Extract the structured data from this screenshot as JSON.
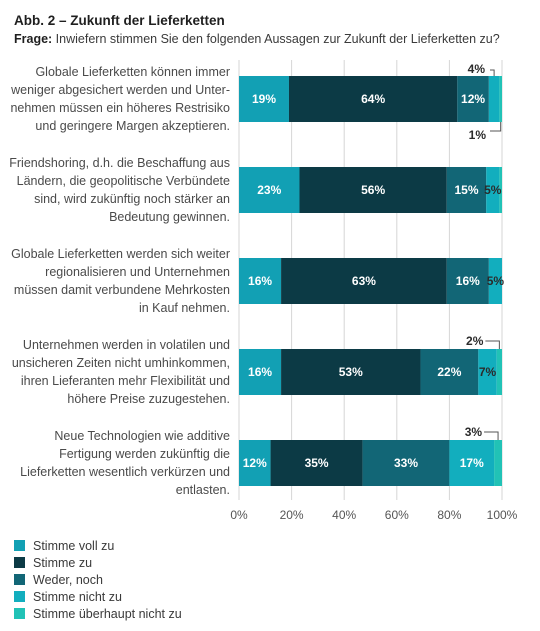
{
  "header": {
    "title": "Abb. 2 – Zukunft der Lieferketten",
    "question_prefix": "Frage:",
    "question_text": " Inwiefern stimmen Sie den folgenden Aussagen zur Zukunft der Lieferketten zu?"
  },
  "colors": {
    "Stimme voll zu": "#12a0b4",
    "Stimme zu": "#0c3a45",
    "Weder, noch": "#126676",
    "Stimme nicht zu": "#12aebe",
    "Stimme überhaupt nicht zu": "#21c2b6"
  },
  "chart_data": {
    "type": "bar",
    "orientation": "horizontal",
    "stacked": true,
    "title": "Abb. 2 – Zukunft der Lieferketten",
    "subtitle": "Frage: Inwiefern stimmen Sie den folgenden Aussagen zur Zukunft der Lieferketten zu?",
    "categories": [
      [
        "Globale Lieferketten können immer",
        "weniger abgesichert werden und Unter-",
        "nehmen müssen ein höheres Restrisiko",
        "und geringere Margen akzeptieren."
      ],
      [
        "Friendshoring, d.h. die Beschaffung aus",
        "Ländern, die geopolitische Verbündete",
        "sind, wird zukünftig noch stärker an",
        "Bedeutung gewinnen."
      ],
      [
        "Globale Lieferketten werden sich weiter",
        "regionalisieren und Unternehmen",
        "müssen damit verbundene Mehrkosten",
        "in Kauf nehmen."
      ],
      [
        "Unternehmen werden in volatilen und",
        "unsicheren Zeiten nicht umhinkommen,",
        "ihren Lieferanten mehr Flexibilität und",
        "höhere Preise zuzugestehen."
      ],
      [
        "Neue Technologien wie additive",
        "Fertigung werden zukünftig die",
        "Lieferketten wesentlich verkürzen und",
        "entlasten."
      ]
    ],
    "series": [
      {
        "name": "Stimme voll zu",
        "values": [
          19,
          23,
          16,
          16,
          12
        ],
        "labels": [
          "19%",
          "23%",
          "16%",
          "16%",
          "12%"
        ]
      },
      {
        "name": "Stimme zu",
        "values": [
          64,
          56,
          63,
          53,
          35
        ],
        "labels": [
          "64%",
          "56%",
          "63%",
          "53%",
          "35%"
        ]
      },
      {
        "name": "Weder, noch",
        "values": [
          12,
          15,
          16,
          22,
          33
        ],
        "labels": [
          "12%",
          "15%",
          "16%",
          "22%",
          "33%"
        ]
      },
      {
        "name": "Stimme nicht zu",
        "values": [
          4,
          5,
          5,
          7,
          17
        ],
        "labels": [
          "4%",
          "5%",
          "5%",
          "7%",
          "17%"
        ]
      },
      {
        "name": "Stimme überhaupt nicht zu",
        "values": [
          1,
          1,
          0,
          2,
          3
        ],
        "labels": [
          "1%",
          "",
          "",
          "2%",
          "3%"
        ]
      }
    ],
    "xlim": [
      0,
      100
    ],
    "xticks": [
      "0%",
      "20%",
      "40%",
      "60%",
      "80%",
      "100%"
    ],
    "grid": true,
    "legend_position": "bottom"
  }
}
